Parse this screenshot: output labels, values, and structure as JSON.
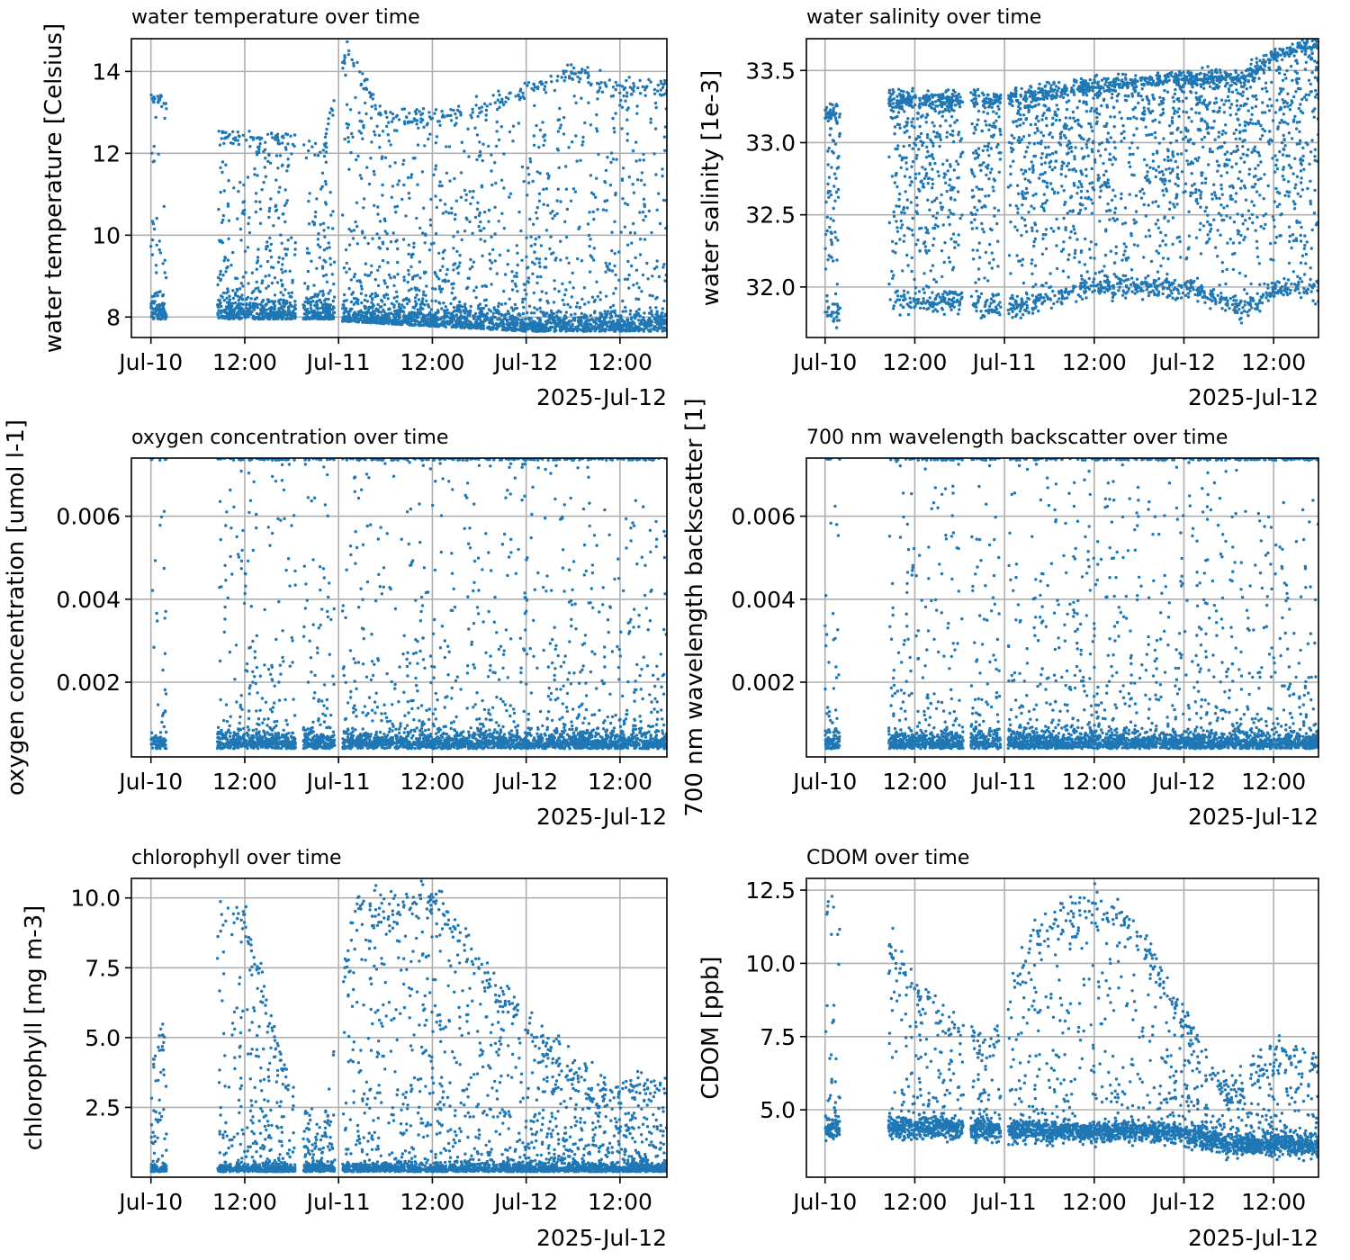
{
  "colors": {
    "series": "#1f77b4",
    "grid": "#b0b0b0",
    "axis": "#000000",
    "background": "#ffffff"
  },
  "x_axis": {
    "ticks": [
      "Jul-10",
      "12:00",
      "Jul-11",
      "12:00",
      "Jul-12",
      "12:00"
    ],
    "offset_label": "2025-Jul-12",
    "tick_hours": [
      0,
      12,
      24,
      36,
      48,
      60
    ]
  },
  "chart_data": [
    {
      "type": "scatter",
      "title": "water temperature over time",
      "xlabel": "",
      "ylabel": "water temperature [Celsius]",
      "x_range": [
        "2025-07-09 21:30",
        "2025-07-12 18:00"
      ],
      "ylim": [
        7.5,
        14.8
      ],
      "yticks": [
        8,
        10,
        12,
        14
      ],
      "ytick_labels": [
        "8",
        "10",
        "12",
        "14"
      ],
      "grid": true,
      "profile": {
        "segments": [
          [
            "Jul-10 00:00",
            "Jul-10 02:00"
          ],
          [
            "Jul-10 08:30",
            "Jul-10 18:30"
          ],
          [
            "Jul-10 19:30",
            "Jul-10 23:30"
          ],
          [
            "Jul-11 00:30",
            "Jul-12 18:00"
          ]
        ],
        "floor_value": 7.8,
        "surface_values": [
          [
            0,
            13.4
          ],
          [
            9,
            12.4
          ],
          [
            18,
            12.3
          ],
          [
            22,
            12.0
          ],
          [
            25,
            14.6
          ],
          [
            29,
            13.0
          ],
          [
            36,
            12.8
          ],
          [
            48,
            13.5
          ],
          [
            54,
            14.0
          ],
          [
            60,
            13.6
          ],
          [
            66,
            13.6
          ]
        ],
        "point_count": 3600
      }
    },
    {
      "type": "scatter",
      "title": "water salinity over time",
      "xlabel": "",
      "ylabel": "water salinity [1e-3]",
      "x_range": [
        "2025-07-09 21:30",
        "2025-07-12 18:00"
      ],
      "ylim": [
        31.65,
        33.72
      ],
      "yticks": [
        32.0,
        32.5,
        33.0,
        33.5
      ],
      "ytick_labels": [
        "32.0",
        "32.5",
        "33.0",
        "33.5"
      ],
      "grid": true,
      "profile": {
        "segments": [
          [
            "Jul-10 00:00",
            "Jul-10 02:00"
          ],
          [
            "Jul-10 08:30",
            "Jul-10 18:30"
          ],
          [
            "Jul-10 19:30",
            "Jul-10 23:30"
          ],
          [
            "Jul-11 00:30",
            "Jul-12 18:00"
          ]
        ],
        "surface_values": [
          [
            0,
            31.8
          ],
          [
            9,
            31.9
          ],
          [
            18,
            31.9
          ],
          [
            24,
            31.85
          ],
          [
            36,
            32.0
          ],
          [
            48,
            32.0
          ],
          [
            56,
            31.85
          ],
          [
            60,
            32.0
          ],
          [
            66,
            32.0
          ]
        ],
        "bottom_values": [
          [
            0,
            33.2
          ],
          [
            9,
            33.3
          ],
          [
            18,
            33.3
          ],
          [
            24,
            33.3
          ],
          [
            36,
            33.4
          ],
          [
            48,
            33.45
          ],
          [
            56,
            33.45
          ],
          [
            60,
            33.6
          ],
          [
            66,
            33.7
          ]
        ],
        "point_count": 3600
      }
    },
    {
      "type": "scatter",
      "title": "oxygen concentration over time",
      "xlabel": "",
      "ylabel": "oxygen concentration [umol l-1]",
      "x_range": [
        "2025-07-09 21:30",
        "2025-07-12 18:00"
      ],
      "ylim": [
        0.0002,
        0.0074
      ],
      "yticks": [
        0.002,
        0.004,
        0.006
      ],
      "ytick_labels": [
        "0.002",
        "0.004",
        "0.006"
      ],
      "grid": true,
      "profile": {
        "segments": [
          [
            "Jul-10 00:00",
            "Jul-10 02:00"
          ],
          [
            "Jul-10 08:30",
            "Jul-10 18:30"
          ],
          [
            "Jul-10 19:30",
            "Jul-10 23:30"
          ],
          [
            "Jul-11 00:30",
            "Jul-12 18:00"
          ]
        ],
        "floor_value": 0.0004,
        "clipped_top": 0.0074,
        "point_count": 3400
      }
    },
    {
      "type": "scatter",
      "title": "700 nm wavelength backscatter over time",
      "xlabel": "",
      "ylabel": "700 nm wavelength backscatter [1]",
      "x_range": [
        "2025-07-09 21:30",
        "2025-07-12 18:00"
      ],
      "ylim": [
        0.0002,
        0.0074
      ],
      "yticks": [
        0.002,
        0.004,
        0.006
      ],
      "ytick_labels": [
        "0.002",
        "0.004",
        "0.006"
      ],
      "grid": true,
      "profile": {
        "segments": [
          [
            "Jul-10 00:00",
            "Jul-10 02:00"
          ],
          [
            "Jul-10 08:30",
            "Jul-10 18:30"
          ],
          [
            "Jul-10 19:30",
            "Jul-10 23:30"
          ],
          [
            "Jul-11 00:30",
            "Jul-12 18:00"
          ]
        ],
        "floor_value": 0.0004,
        "clipped_top": 0.0074,
        "point_count": 3400
      }
    },
    {
      "type": "scatter",
      "title": "chlorophyll over time",
      "xlabel": "",
      "ylabel": "chlorophyll [mg m-3]",
      "x_range": [
        "2025-07-09 21:30",
        "2025-07-12 18:00"
      ],
      "ylim": [
        0.0,
        10.7
      ],
      "yticks": [
        2.5,
        5.0,
        7.5,
        10.0
      ],
      "ytick_labels": [
        "2.5",
        "5.0",
        "7.5",
        "10.0"
      ],
      "grid": true,
      "profile": {
        "segments": [
          [
            "Jul-10 00:00",
            "Jul-10 02:00"
          ],
          [
            "Jul-10 08:30",
            "Jul-10 18:30"
          ],
          [
            "Jul-10 19:30",
            "Jul-10 23:30"
          ],
          [
            "Jul-11 00:30",
            "Jul-12 18:00"
          ]
        ],
        "floor_value": 0.2,
        "peak_values": [
          [
            0,
            4.0
          ],
          [
            9,
            9.5
          ],
          [
            12,
            9.0
          ],
          [
            18,
            3.0
          ],
          [
            22,
            1.2
          ],
          [
            26,
            10.0
          ],
          [
            30,
            9.5
          ],
          [
            36,
            10.0
          ],
          [
            42,
            7.5
          ],
          [
            48,
            5.5
          ],
          [
            56,
            3.2
          ],
          [
            66,
            3.2
          ]
        ],
        "point_count": 3400
      }
    },
    {
      "type": "scatter",
      "title": "CDOM over time",
      "xlabel": "",
      "ylabel": "CDOM [ppb]",
      "x_range": [
        "2025-07-09 21:30",
        "2025-07-12 18:00"
      ],
      "ylim": [
        2.7,
        12.9
      ],
      "yticks": [
        5.0,
        7.5,
        10.0,
        12.5
      ],
      "ytick_labels": [
        "5.0",
        "7.5",
        "10.0",
        "12.5"
      ],
      "grid": true,
      "profile": {
        "segments": [
          [
            "Jul-10 00:00",
            "Jul-10 02:00"
          ],
          [
            "Jul-10 08:30",
            "Jul-10 18:30"
          ],
          [
            "Jul-10 19:30",
            "Jul-10 23:30"
          ],
          [
            "Jul-11 00:30",
            "Jul-12 18:00"
          ]
        ],
        "floor_values": [
          [
            0,
            4.4
          ],
          [
            24,
            4.3
          ],
          [
            48,
            4.2
          ],
          [
            54,
            3.8
          ],
          [
            66,
            3.8
          ]
        ],
        "peak_values": [
          [
            0,
            12.0
          ],
          [
            9,
            10.5
          ],
          [
            12,
            9.0
          ],
          [
            22,
            7.0
          ],
          [
            28,
            11.0
          ],
          [
            36,
            12.0
          ],
          [
            42,
            11.0
          ],
          [
            48,
            8.0
          ],
          [
            54,
            5.5
          ],
          [
            60,
            7.0
          ],
          [
            66,
            6.5
          ]
        ],
        "point_count": 3400
      }
    }
  ]
}
